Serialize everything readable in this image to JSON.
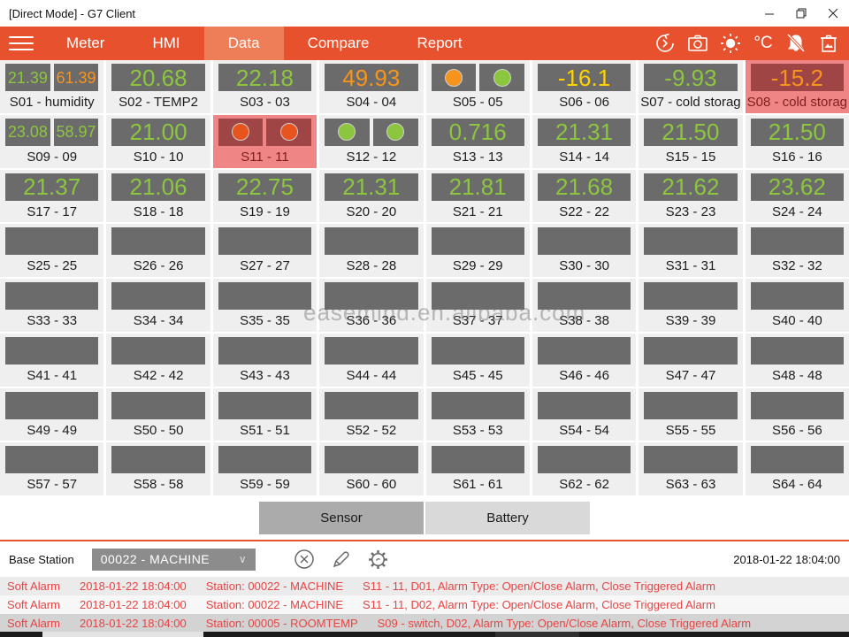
{
  "window": {
    "title": "[Direct Mode] - G7 Client",
    "controls": [
      "minimize",
      "restore",
      "close"
    ]
  },
  "nav": {
    "tabs": [
      {
        "label": "Meter",
        "active": false
      },
      {
        "label": "HMI",
        "active": false
      },
      {
        "label": "Data",
        "active": true
      },
      {
        "label": "Compare",
        "active": false
      },
      {
        "label": "Report",
        "active": false
      }
    ],
    "icons": [
      "sync-history-icon",
      "camera-icon",
      "brightness-sun-icon",
      "celsius-icon",
      "alarm-mute-bell-icon",
      "trash-image-icon"
    ],
    "celsius_label": "°C"
  },
  "colors": {
    "nav_orange": "#E8512D",
    "nav_active_tab": "#EE7E57",
    "green": "#8CC63E",
    "orange": "#F7941D",
    "yellow": "#FFD200",
    "red_led": "#E8541D",
    "alarm_cell_bg": "#EF8585",
    "alarm_value_box": "#A04545",
    "alarm_text": "#E64545",
    "value_box": "#6B6B6B"
  },
  "grid": {
    "cells": [
      {
        "label": "S01 - humidity",
        "type": "dual",
        "values": [
          {
            "t": "21.39",
            "c": "green"
          },
          {
            "t": "61.39",
            "c": "orange"
          }
        ]
      },
      {
        "label": "S02 - TEMP2",
        "type": "single",
        "values": [
          {
            "t": "20.68",
            "c": "green"
          }
        ]
      },
      {
        "label": "S03 - 03",
        "type": "single",
        "values": [
          {
            "t": "22.18",
            "c": "green"
          }
        ]
      },
      {
        "label": "S04 - 04",
        "type": "single",
        "values": [
          {
            "t": "49.93",
            "c": "orange"
          }
        ]
      },
      {
        "label": "S05 - 05",
        "type": "leds",
        "leds": [
          "orange",
          "green"
        ]
      },
      {
        "label": "S06 - 06",
        "type": "single",
        "values": [
          {
            "t": "-16.1",
            "c": "yellow"
          }
        ]
      },
      {
        "label": "S07 - cold storag",
        "type": "single",
        "values": [
          {
            "t": "-9.93",
            "c": "green"
          }
        ]
      },
      {
        "label": "S08 - cold storag",
        "type": "single",
        "alarm": true,
        "values": [
          {
            "t": "-15.2",
            "c": "orange"
          }
        ]
      },
      {
        "label": "S09 - 09",
        "type": "dual",
        "values": [
          {
            "t": "23.08",
            "c": "green"
          },
          {
            "t": "58.97",
            "c": "green"
          }
        ]
      },
      {
        "label": "S10 - 10",
        "type": "single",
        "values": [
          {
            "t": "21.00",
            "c": "green"
          }
        ]
      },
      {
        "label": "S11 - 11",
        "type": "leds",
        "alarm": true,
        "leds": [
          "red",
          "red"
        ]
      },
      {
        "label": "S12 - 12",
        "type": "leds",
        "leds": [
          "green",
          "green"
        ]
      },
      {
        "label": "S13 - 13",
        "type": "single",
        "values": [
          {
            "t": "0.716",
            "c": "green"
          }
        ]
      },
      {
        "label": "S14 - 14",
        "type": "single",
        "values": [
          {
            "t": "21.31",
            "c": "green"
          }
        ]
      },
      {
        "label": "S15 - 15",
        "type": "single",
        "values": [
          {
            "t": "21.50",
            "c": "green"
          }
        ]
      },
      {
        "label": "S16 - 16",
        "type": "single",
        "values": [
          {
            "t": "21.50",
            "c": "green"
          }
        ]
      },
      {
        "label": "S17 - 17",
        "type": "single",
        "values": [
          {
            "t": "21.37",
            "c": "green"
          }
        ]
      },
      {
        "label": "S18 - 18",
        "type": "single",
        "values": [
          {
            "t": "21.06",
            "c": "green"
          }
        ]
      },
      {
        "label": "S19 - 19",
        "type": "single",
        "values": [
          {
            "t": "22.75",
            "c": "green"
          }
        ]
      },
      {
        "label": "S20 - 20",
        "type": "single",
        "values": [
          {
            "t": "21.31",
            "c": "green"
          }
        ]
      },
      {
        "label": "S21 - 21",
        "type": "single",
        "values": [
          {
            "t": "21.81",
            "c": "green"
          }
        ]
      },
      {
        "label": "S22 - 22",
        "type": "single",
        "values": [
          {
            "t": "21.68",
            "c": "green"
          }
        ]
      },
      {
        "label": "S23 - 23",
        "type": "single",
        "values": [
          {
            "t": "21.62",
            "c": "green"
          }
        ]
      },
      {
        "label": "S24 - 24",
        "type": "single",
        "values": [
          {
            "t": "23.62",
            "c": "green"
          }
        ]
      },
      {
        "label": "S25 - 25",
        "type": "empty"
      },
      {
        "label": "S26 - 26",
        "type": "empty"
      },
      {
        "label": "S27 - 27",
        "type": "empty"
      },
      {
        "label": "S28 - 28",
        "type": "empty"
      },
      {
        "label": "S29 - 29",
        "type": "empty"
      },
      {
        "label": "S30 - 30",
        "type": "empty"
      },
      {
        "label": "S31 - 31",
        "type": "empty"
      },
      {
        "label": "S32 - 32",
        "type": "empty"
      },
      {
        "label": "S33 - 33",
        "type": "empty"
      },
      {
        "label": "S34 - 34",
        "type": "empty"
      },
      {
        "label": "S35 - 35",
        "type": "empty"
      },
      {
        "label": "S36 - 36",
        "type": "empty"
      },
      {
        "label": "S37 - 37",
        "type": "empty"
      },
      {
        "label": "S38 - 38",
        "type": "empty"
      },
      {
        "label": "S39 - 39",
        "type": "empty"
      },
      {
        "label": "S40 - 40",
        "type": "empty"
      },
      {
        "label": "S41 - 41",
        "type": "empty"
      },
      {
        "label": "S42 - 42",
        "type": "empty"
      },
      {
        "label": "S43 - 43",
        "type": "empty"
      },
      {
        "label": "S44 - 44",
        "type": "empty"
      },
      {
        "label": "S45 - 45",
        "type": "empty"
      },
      {
        "label": "S46 - 46",
        "type": "empty"
      },
      {
        "label": "S47 - 47",
        "type": "empty"
      },
      {
        "label": "S48 - 48",
        "type": "empty"
      },
      {
        "label": "S49 - 49",
        "type": "empty"
      },
      {
        "label": "S50 - 50",
        "type": "empty"
      },
      {
        "label": "S51 - 51",
        "type": "empty"
      },
      {
        "label": "S52 - 52",
        "type": "empty"
      },
      {
        "label": "S53 - 53",
        "type": "empty"
      },
      {
        "label": "S54 - 54",
        "type": "empty"
      },
      {
        "label": "S55 - 55",
        "type": "empty"
      },
      {
        "label": "S56 - 56",
        "type": "empty"
      },
      {
        "label": "S57 - 57",
        "type": "empty"
      },
      {
        "label": "S58 - 58",
        "type": "empty"
      },
      {
        "label": "S59 - 59",
        "type": "empty"
      },
      {
        "label": "S60 - 60",
        "type": "empty"
      },
      {
        "label": "S61 - 61",
        "type": "empty"
      },
      {
        "label": "S62 - 62",
        "type": "empty"
      },
      {
        "label": "S63 - 63",
        "type": "empty"
      },
      {
        "label": "S64 - 64",
        "type": "empty"
      }
    ]
  },
  "view_buttons": {
    "sensor_label": "Sensor",
    "battery_label": "Battery",
    "selected": "Sensor"
  },
  "base_station": {
    "label": "Base Station",
    "selected_option": "00022 - MACHINE",
    "tool_icons": [
      "close-circle-icon",
      "edit-pencil-icon",
      "settings-gear-icon"
    ],
    "timestamp": "2018-01-22 18:04:00"
  },
  "alarms": [
    {
      "severity": "Soft Alarm",
      "time": "2018-01-22 18:04:00",
      "station": "Station: 00022 - MACHINE",
      "detail": "S11 - 11, D01, Alarm Type: Open/Close Alarm, Close Triggered Alarm"
    },
    {
      "severity": "Soft Alarm",
      "time": "2018-01-22 18:04:00",
      "station": "Station: 00022 - MACHINE",
      "detail": "S11 - 11, D02, Alarm Type: Open/Close Alarm, Close Triggered Alarm"
    },
    {
      "severity": "Soft Alarm",
      "time": "2018-01-22 18:04:00",
      "station": "Station: 00005 - ROOMTEMP",
      "detail": "S09 - switch, D02, Alarm Type: Open/Close Alarm, Close Triggered Alarm"
    }
  ],
  "alarm_row_bgs": [
    "#EBEBEB",
    "#F7F7F7",
    "#D3D3D3"
  ],
  "watermark": "easemind.en.alibaba.com"
}
